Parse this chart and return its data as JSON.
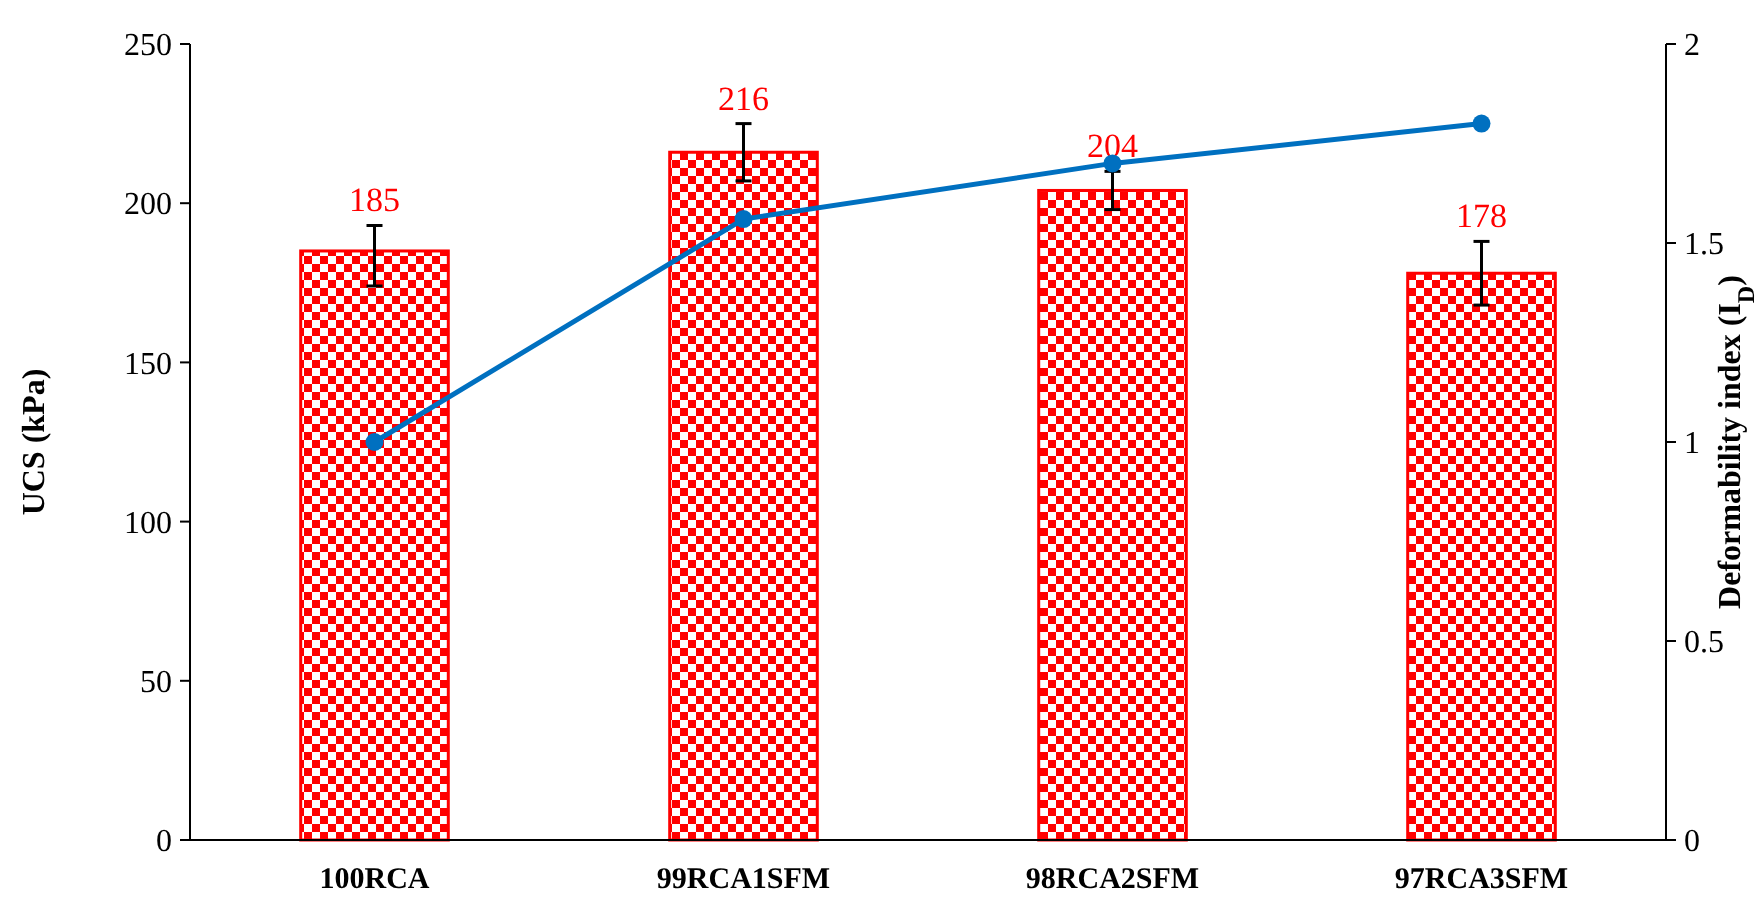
{
  "chart_data": {
    "type": "bar",
    "categories": [
      "100RCA",
      "99RCA1SFM",
      "98RCA2SFM",
      "97RCA3SFM"
    ],
    "ylabel": "UCS (kPa)",
    "y2label": "Deformability index (I$_{D}$)",
    "ylim": [
      0,
      250
    ],
    "yticks": [
      0,
      50,
      100,
      150,
      200,
      250
    ],
    "y2lim": [
      0,
      2
    ],
    "y2ticks": [
      0,
      0.5,
      1,
      1.5,
      2
    ],
    "grid": false,
    "marker": "circle",
    "series": [
      {
        "color": "#ff0000",
        "values": [
          185,
          216,
          204,
          178
        ],
        "errors": [
          [
            174,
            193
          ],
          [
            207,
            225
          ],
          [
            198,
            210
          ],
          [
            168,
            188
          ]
        ],
        "value_labels": [
          "185",
          "216",
          "204",
          "178"
        ]
      },
      {
        "type": "line",
        "axis": "y2",
        "color": "#0070c0",
        "values": [
          1.0,
          1.56,
          1.7,
          1.8
        ]
      }
    ]
  }
}
